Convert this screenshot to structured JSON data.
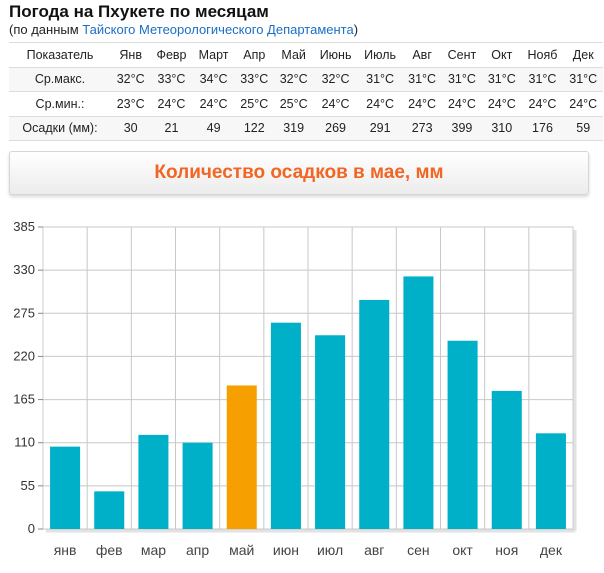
{
  "header": {
    "title": "Погода на Пхукете по месяцам",
    "subtitle_prefix": "(по данным ",
    "subtitle_link": "Тайского Метеорологического Департамента",
    "subtitle_suffix": ")"
  },
  "climate_table": {
    "header_label": "Показатель",
    "months": [
      "Янв",
      "Февр",
      "Март",
      "Апр",
      "Май",
      "Июнь",
      "Июль",
      "Авг",
      "Сент",
      "Окт",
      "Нояб",
      "Дек"
    ],
    "rows": [
      {
        "label": "Ср.макс.",
        "values": [
          "32°C",
          "33°C",
          "34°C",
          "33°C",
          "32°C",
          "32°C",
          "31°C",
          "31°C",
          "31°C",
          "31°C",
          "31°C",
          "31°C"
        ]
      },
      {
        "label": "Ср.мин.:",
        "values": [
          "23°C",
          "24°C",
          "24°C",
          "25°C",
          "25°C",
          "24°C",
          "24°C",
          "24°C",
          "24°C",
          "24°C",
          "24°C",
          "24°C"
        ]
      },
      {
        "label": "Осадки (мм):",
        "values": [
          "30",
          "21",
          "49",
          "122",
          "319",
          "269",
          "291",
          "273",
          "399",
          "310",
          "176",
          "59"
        ]
      }
    ]
  },
  "chart_title": "Количество осадков в мае, мм",
  "colors": {
    "bar": "#00b0c8",
    "highlight": "#f5a000",
    "title": "#f26522",
    "grid": "#c8c8c8",
    "frame": "#cccccc",
    "link": "#1a6fc4"
  },
  "chart_data": {
    "type": "bar",
    "title": "Количество осадков в мае, мм",
    "categories": [
      "янв",
      "фев",
      "мар",
      "апр",
      "май",
      "июн",
      "июл",
      "авг",
      "сен",
      "окт",
      "ноя",
      "дек"
    ],
    "values": [
      105,
      48,
      120,
      110,
      183,
      263,
      247,
      292,
      322,
      240,
      176,
      122
    ],
    "highlight_index": 4,
    "yticks": [
      0,
      55,
      110,
      165,
      220,
      275,
      330,
      385
    ],
    "ylim": [
      0,
      385
    ],
    "grid": true
  }
}
